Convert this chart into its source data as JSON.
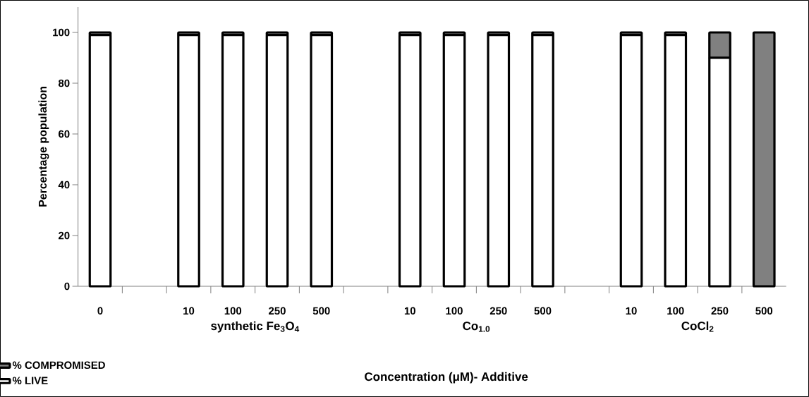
{
  "chart_data": {
    "type": "bar",
    "stacked": true,
    "xlabel": "Concentration (μM)- Additive",
    "ylabel": "Percentage population",
    "categories": [
      "0",
      null,
      "10",
      "100",
      "250",
      "500",
      null,
      "10",
      "100",
      "250",
      "500",
      null,
      "10",
      "100",
      "250",
      "500"
    ],
    "series": [
      {
        "name": "% LIVE",
        "color": "#ffffff",
        "values": [
          99,
          null,
          99,
          99,
          99,
          99,
          null,
          99,
          99,
          99,
          99,
          null,
          99,
          99,
          90,
          null
        ]
      },
      {
        "name": "% COMPROMISED",
        "color": "#808080",
        "values": [
          1,
          null,
          1,
          1,
          1,
          1,
          null,
          1,
          1,
          1,
          1,
          null,
          1,
          1,
          10,
          100
        ]
      }
    ],
    "annotations": [
      "synthetic Fe$_{3}$O$_{4}$",
      "Co$_{1.0}$",
      "CoCl$_{2}$"
    ],
    "ylim": [
      0,
      110
    ],
    "yticks": [
      0,
      20,
      40,
      60,
      80,
      100
    ],
    "legend": "bottom left",
    "grid": false
  }
}
